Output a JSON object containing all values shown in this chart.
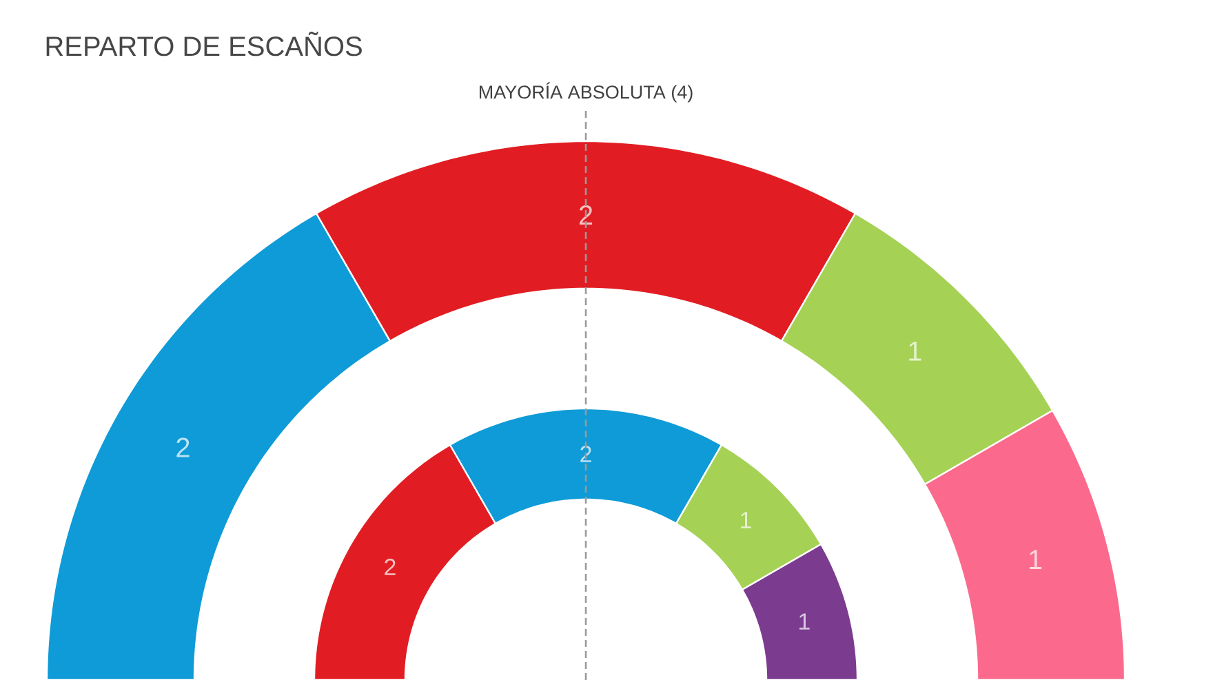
{
  "chart_data": {
    "type": "donut",
    "title": "REPARTO DE ESCAÑOS",
    "categories": [
      null,
      null,
      null,
      null
    ],
    "series": [
      {
        "values": [
          2,
          2,
          1,
          1
        ],
        "colors": [
          "#0e9bd7",
          "#e11d23",
          "#a5d155",
          "#fb6a8c"
        ]
      },
      {
        "values": [
          2,
          2,
          1,
          1
        ],
        "colors": [
          "#e11d23",
          "#0e9bd7",
          "#a5d155",
          "#7b3b8f"
        ]
      }
    ],
    "data_labels": true,
    "annotations": [
      "MAYORÍA ABSOLUTA (4)"
    ]
  }
}
